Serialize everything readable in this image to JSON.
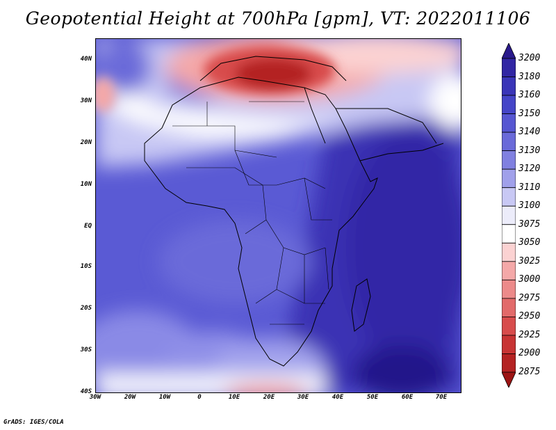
{
  "title": "Geopotential Height at 700hPa [gpm], VT: 2022011106",
  "credit": "GrADS: IGES/COLA",
  "map": {
    "region": "Africa",
    "variable": "Geopotential Height",
    "level": "700hPa",
    "units": "gpm",
    "valid_time": "2022011106",
    "lat_labels": [
      "40N",
      "30N",
      "20N",
      "10N",
      "EQ",
      "10S",
      "20S",
      "30S",
      "40S"
    ],
    "lon_labels": [
      "30W",
      "20W",
      "10W",
      "0",
      "10E",
      "20E",
      "30E",
      "40E",
      "50E",
      "60E",
      "70E"
    ]
  },
  "colorbar": {
    "levels": [
      "3200",
      "3180",
      "3160",
      "3150",
      "3140",
      "3130",
      "3120",
      "3110",
      "3100",
      "3075",
      "3050",
      "3025",
      "3000",
      "2975",
      "2950",
      "2925",
      "2900",
      "2875"
    ],
    "colors": [
      "#2a1a8c",
      "#3126a4",
      "#3a35b8",
      "#4545c8",
      "#5656d2",
      "#6a6ad9",
      "#8080e0",
      "#a0a0ea",
      "#c8c8f4",
      "#ececfa",
      "#ffffff",
      "#fbd2d2",
      "#f4a8a8",
      "#ec8a8a",
      "#e26a6a",
      "#d84c4c",
      "#c83434",
      "#b42222",
      "#9c1414"
    ]
  }
}
